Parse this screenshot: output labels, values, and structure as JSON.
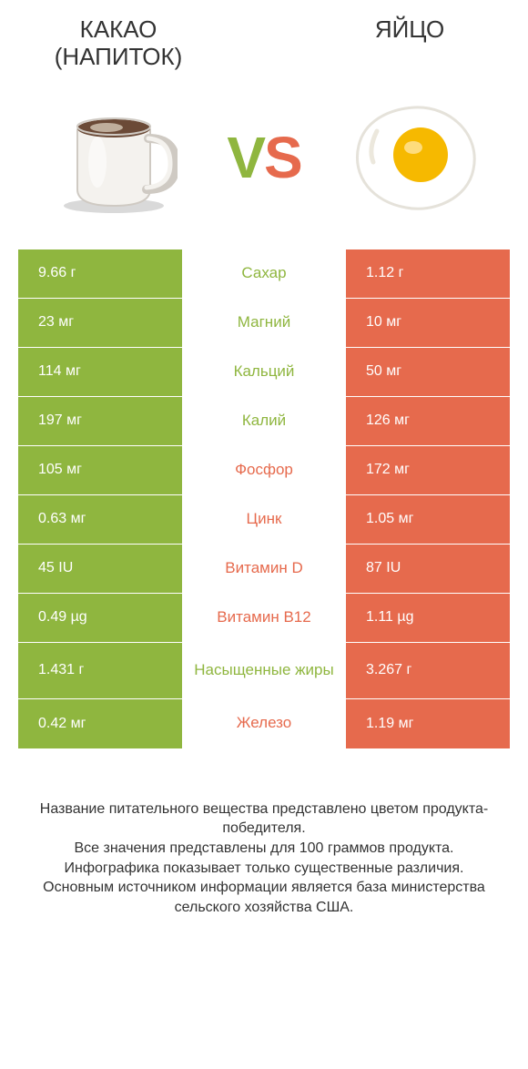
{
  "colors": {
    "green": "#8fb63f",
    "orange": "#e66a4d",
    "text": "#333333",
    "white": "#ffffff"
  },
  "header": {
    "left": "КАКАО (НАПИТОК)",
    "right": "ЯЙЦО"
  },
  "vs": {
    "v": "V",
    "s": "S"
  },
  "rows": [
    {
      "label": "Сахар",
      "left": "9.66 г",
      "right": "1.12 г",
      "winner": "left"
    },
    {
      "label": "Магний",
      "left": "23 мг",
      "right": "10 мг",
      "winner": "left"
    },
    {
      "label": "Кальций",
      "left": "114 мг",
      "right": "50 мг",
      "winner": "left"
    },
    {
      "label": "Калий",
      "left": "197 мг",
      "right": "126 мг",
      "winner": "left"
    },
    {
      "label": "Фосфор",
      "left": "105 мг",
      "right": "172 мг",
      "winner": "right"
    },
    {
      "label": "Цинк",
      "left": "0.63 мг",
      "right": "1.05 мг",
      "winner": "right"
    },
    {
      "label": "Витамин D",
      "left": "45 IU",
      "right": "87 IU",
      "winner": "right"
    },
    {
      "label": "Витамин B12",
      "left": "0.49 µg",
      "right": "1.11 µg",
      "winner": "right"
    },
    {
      "label": "Насыщенные жиры",
      "left": "1.431 г",
      "right": "3.267 г",
      "winner": "left",
      "tall": true
    },
    {
      "label": "Железо",
      "left": "0.42 мг",
      "right": "1.19 мг",
      "winner": "right"
    }
  ],
  "footer": "Название питательного вещества представлено цветом продукта-победителя.\nВсе значения представлены для 100 граммов продукта.\nИнфографика показывает только существенные различия.\nОсновным источником информации является база министерства сельского хозяйства США."
}
